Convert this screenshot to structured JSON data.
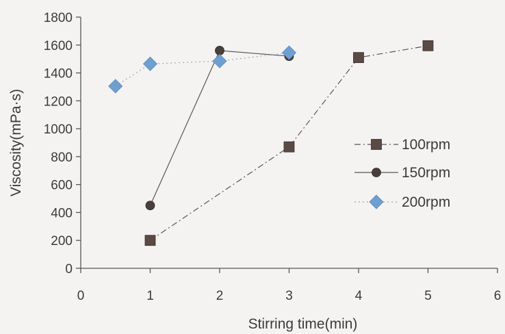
{
  "chart_data": {
    "type": "line",
    "title": "",
    "xlabel": "Stirring time(min)",
    "ylabel": "Viscosity(mPa·s)",
    "xlim": [
      0,
      6
    ],
    "ylim": [
      0,
      1800
    ],
    "x_ticks": [
      0,
      1,
      2,
      3,
      4,
      5,
      6
    ],
    "y_ticks": [
      0,
      200,
      400,
      600,
      800,
      1000,
      1200,
      1400,
      1600,
      1800
    ],
    "grid": false,
    "legend_position": "right",
    "series": [
      {
        "name": "100rpm",
        "marker": "square",
        "line": "dash-dot",
        "color": "#5a4a44",
        "x": [
          1,
          3,
          4,
          5
        ],
        "y": [
          200,
          870,
          1510,
          1595
        ]
      },
      {
        "name": "150rpm",
        "marker": "circle",
        "line": "solid",
        "color": "#4a3f3b",
        "x": [
          1,
          2,
          3
        ],
        "y": [
          450,
          1560,
          1520
        ]
      },
      {
        "name": "200rpm",
        "marker": "diamond",
        "line": "dotted",
        "color": "#6f9fcf",
        "x": [
          0.5,
          1,
          2,
          3
        ],
        "y": [
          1305,
          1465,
          1485,
          1545
        ]
      }
    ]
  }
}
